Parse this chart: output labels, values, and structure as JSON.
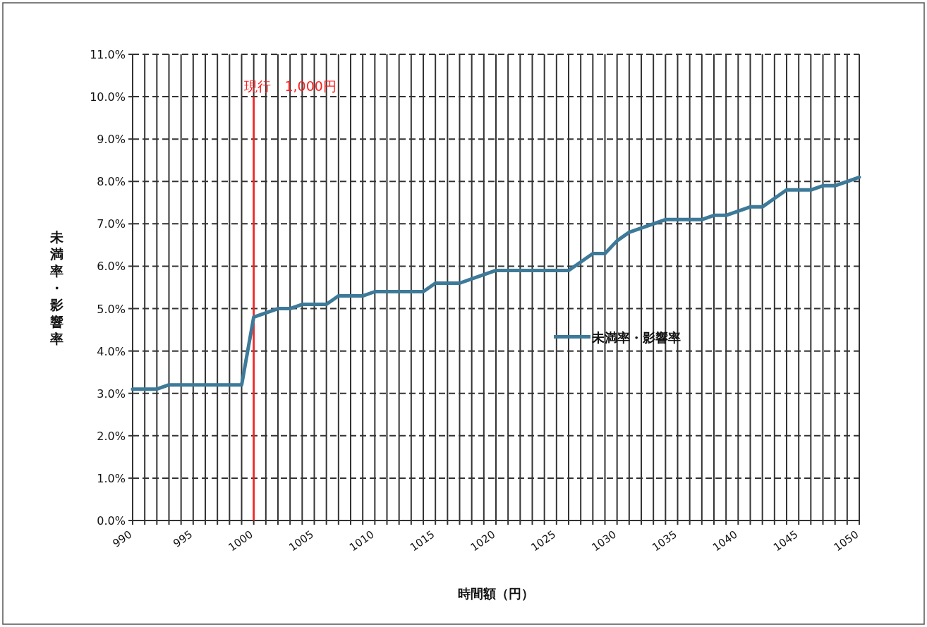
{
  "chart_data": {
    "type": "line",
    "xlabel": "時間額（円）",
    "ylabel": "未満率・影響率",
    "x": [
      990,
      991,
      992,
      993,
      994,
      995,
      996,
      997,
      998,
      999,
      1000,
      1001,
      1002,
      1003,
      1004,
      1005,
      1006,
      1007,
      1008,
      1009,
      1010,
      1011,
      1012,
      1013,
      1014,
      1015,
      1016,
      1017,
      1018,
      1019,
      1020,
      1021,
      1022,
      1023,
      1024,
      1025,
      1026,
      1027,
      1028,
      1029,
      1030,
      1031,
      1032,
      1033,
      1034,
      1035,
      1036,
      1037,
      1038,
      1039,
      1040,
      1041,
      1042,
      1043,
      1044,
      1045,
      1046,
      1047,
      1048,
      1049,
      1050
    ],
    "series": [
      {
        "name": "未満率・影響率",
        "color": "#3d7a99",
        "values": [
          3.1,
          3.1,
          3.1,
          3.2,
          3.2,
          3.2,
          3.2,
          3.2,
          3.2,
          3.2,
          4.8,
          4.9,
          5.0,
          5.0,
          5.1,
          5.1,
          5.1,
          5.3,
          5.3,
          5.3,
          5.4,
          5.4,
          5.4,
          5.4,
          5.4,
          5.6,
          5.6,
          5.6,
          5.7,
          5.8,
          5.9,
          5.9,
          5.9,
          5.9,
          5.9,
          5.9,
          5.9,
          6.1,
          6.3,
          6.3,
          6.6,
          6.8,
          6.9,
          7.0,
          7.1,
          7.1,
          7.1,
          7.1,
          7.2,
          7.2,
          7.3,
          7.4,
          7.4,
          7.6,
          7.8,
          7.8,
          7.8,
          7.9,
          7.9,
          8.0,
          8.1
        ]
      }
    ],
    "xlim": [
      990,
      1050
    ],
    "ylim": [
      0,
      11
    ],
    "xticks": [
      990,
      {
        "value": 991,
        "label": null
      },
      {
        "value": 992,
        "label": null
      },
      {
        "value": 993,
        "label": null
      },
      {
        "value": 994,
        "label": null
      },
      995,
      {
        "value": 996,
        "label": null
      },
      {
        "value": 997,
        "label": null
      },
      {
        "value": 998,
        "label": null
      },
      {
        "value": 999,
        "label": null
      },
      1000,
      {
        "value": 1001,
        "label": null
      },
      {
        "value": 1002,
        "label": null
      },
      {
        "value": 1003,
        "label": null
      },
      {
        "value": 1004,
        "label": null
      },
      1005,
      {
        "value": 1006,
        "label": null
      },
      {
        "value": 1007,
        "label": null
      },
      {
        "value": 1008,
        "label": null
      },
      {
        "value": 1009,
        "label": null
      },
      1010,
      {
        "value": 1011,
        "label": null
      },
      {
        "value": 1012,
        "label": null
      },
      {
        "value": 1013,
        "label": null
      },
      {
        "value": 1014,
        "label": null
      },
      1015,
      {
        "value": 1016,
        "label": null
      },
      {
        "value": 1017,
        "label": null
      },
      {
        "value": 1018,
        "label": null
      },
      {
        "value": 1019,
        "label": null
      },
      1020,
      {
        "value": 1021,
        "label": null
      },
      {
        "value": 1022,
        "label": null
      },
      {
        "value": 1023,
        "label": null
      },
      {
        "value": 1024,
        "label": null
      },
      1025,
      {
        "value": 1026,
        "label": null
      },
      {
        "value": 1027,
        "label": null
      },
      {
        "value": 1028,
        "label": null
      },
      {
        "value": 1029,
        "label": null
      },
      1030,
      {
        "value": 1031,
        "label": null
      },
      {
        "value": 1032,
        "label": null
      },
      {
        "value": 1033,
        "label": null
      },
      {
        "value": 1034,
        "label": null
      },
      1035,
      {
        "value": 1036,
        "label": null
      },
      {
        "value": 1037,
        "label": null
      },
      {
        "value": 1038,
        "label": null
      },
      {
        "value": 1039,
        "label": null
      },
      1040,
      {
        "value": 1041,
        "label": null
      },
      {
        "value": 1042,
        "label": null
      },
      {
        "value": 1043,
        "label": null
      },
      {
        "value": 1044,
        "label": null
      },
      1045,
      {
        "value": 1046,
        "label": null
      },
      {
        "value": 1047,
        "label": null
      },
      {
        "value": 1048,
        "label": null
      },
      {
        "value": 1049,
        "label": null
      },
      1050
    ],
    "yticks": [
      {
        "value": 0,
        "label": "0.0%"
      },
      {
        "value": 1,
        "label": "1.0%"
      },
      {
        "value": 2,
        "label": "2.0%"
      },
      {
        "value": 3,
        "label": "3.0%"
      },
      {
        "value": 4,
        "label": "4.0%"
      },
      {
        "value": 5,
        "label": "5.0%"
      },
      {
        "value": 6,
        "label": "6.0%"
      },
      {
        "value": 7,
        "label": "7.0%"
      },
      {
        "value": 8,
        "label": "8.0%"
      },
      {
        "value": 9,
        "label": "9.0%"
      },
      {
        "value": 10,
        "label": "10.0%"
      },
      {
        "value": 11,
        "label": "11.0%"
      }
    ],
    "ref_lines": [
      {
        "axis": "x",
        "value": 1000,
        "label": "現行　1,000円",
        "color": "#ff2020"
      }
    ],
    "grid": true,
    "legend": "right",
    "marker": "none",
    "line_style": "solid"
  }
}
